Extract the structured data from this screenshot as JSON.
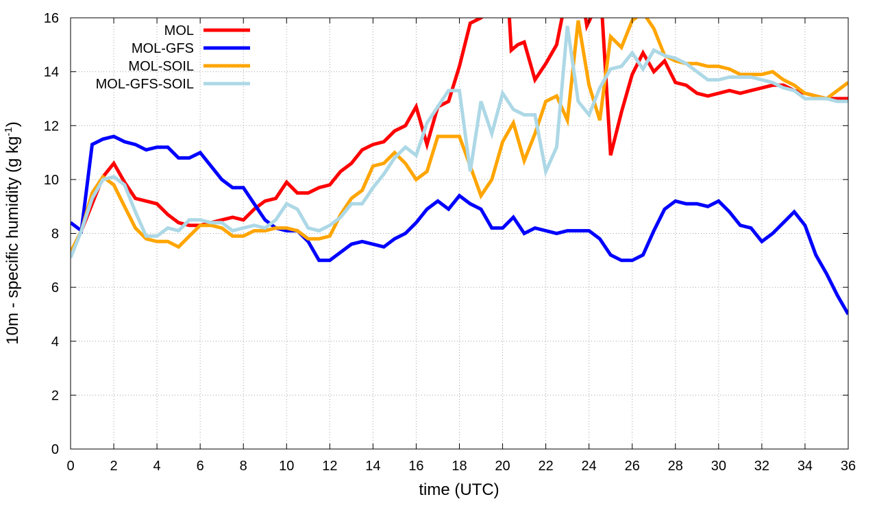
{
  "chart_data": {
    "type": "line",
    "xlabel": "time (UTC)",
    "ylabel_main": "10m - specific humidity (g kg",
    "ylabel_sup": "-1",
    "ylabel_tail": ")",
    "xlim": [
      0,
      36
    ],
    "ylim": [
      0,
      16
    ],
    "xticks": [
      0,
      2,
      4,
      6,
      8,
      10,
      12,
      14,
      16,
      18,
      20,
      22,
      24,
      26,
      28,
      30,
      32,
      34,
      36
    ],
    "yticks": [
      0,
      2,
      4,
      6,
      8,
      10,
      12,
      14,
      16
    ],
    "grid": true,
    "legend_position": "top-left",
    "series": [
      {
        "name": "MOL",
        "color": "#ff0000",
        "points": [
          [
            0,
            7.2
          ],
          [
            0.5,
            8.1
          ],
          [
            1,
            9.1
          ],
          [
            1.5,
            10.1
          ],
          [
            2,
            10.6
          ],
          [
            2.5,
            9.9
          ],
          [
            3,
            9.3
          ],
          [
            3.5,
            9.2
          ],
          [
            4,
            9.1
          ],
          [
            4.5,
            8.7
          ],
          [
            5,
            8.4
          ],
          [
            5.5,
            8.3
          ],
          [
            6,
            8.3
          ],
          [
            6.5,
            8.4
          ],
          [
            7,
            8.5
          ],
          [
            7.5,
            8.6
          ],
          [
            8,
            8.5
          ],
          [
            8.5,
            8.9
          ],
          [
            9,
            9.2
          ],
          [
            9.5,
            9.3
          ],
          [
            10,
            9.9
          ],
          [
            10.5,
            9.5
          ],
          [
            11,
            9.5
          ],
          [
            11.5,
            9.7
          ],
          [
            12,
            9.8
          ],
          [
            12.5,
            10.3
          ],
          [
            13,
            10.6
          ],
          [
            13.5,
            11.1
          ],
          [
            14,
            11.3
          ],
          [
            14.5,
            11.4
          ],
          [
            15,
            11.8
          ],
          [
            15.5,
            12.0
          ],
          [
            16,
            12.7
          ],
          [
            16.5,
            11.3
          ],
          [
            17,
            12.7
          ],
          [
            17.5,
            12.9
          ],
          [
            18,
            14.2
          ],
          [
            18.5,
            15.8
          ],
          [
            19,
            16.0
          ],
          [
            19.3,
            16.2
          ],
          [
            20.3,
            16.2
          ],
          [
            20.4,
            14.8
          ],
          [
            20.7,
            15.0
          ],
          [
            21,
            15.1
          ],
          [
            21.5,
            13.7
          ],
          [
            22,
            14.3
          ],
          [
            22.5,
            15.0
          ],
          [
            22.8,
            16.2
          ],
          [
            23.8,
            16.2
          ],
          [
            23.9,
            15.7
          ],
          [
            24.2,
            16.2
          ],
          [
            24.6,
            16.2
          ],
          [
            25,
            10.9
          ],
          [
            25.5,
            12.5
          ],
          [
            26,
            13.9
          ],
          [
            26.5,
            14.7
          ],
          [
            27,
            14.0
          ],
          [
            27.5,
            14.4
          ],
          [
            28,
            13.6
          ],
          [
            28.5,
            13.5
          ],
          [
            29,
            13.2
          ],
          [
            29.5,
            13.1
          ],
          [
            30,
            13.2
          ],
          [
            30.5,
            13.3
          ],
          [
            31,
            13.2
          ],
          [
            31.5,
            13.3
          ],
          [
            32,
            13.4
          ],
          [
            32.5,
            13.5
          ],
          [
            33,
            13.5
          ],
          [
            33.5,
            13.3
          ],
          [
            34,
            13.2
          ],
          [
            34.5,
            13.1
          ],
          [
            35,
            13.0
          ],
          [
            35.5,
            13.0
          ],
          [
            36,
            13.0
          ]
        ]
      },
      {
        "name": "MOL-GFS",
        "color": "#0000ff",
        "points": [
          [
            0,
            8.4
          ],
          [
            0.5,
            8.1
          ],
          [
            1,
            11.3
          ],
          [
            1.5,
            11.5
          ],
          [
            2,
            11.6
          ],
          [
            2.5,
            11.4
          ],
          [
            3,
            11.3
          ],
          [
            3.5,
            11.1
          ],
          [
            4,
            11.2
          ],
          [
            4.5,
            11.2
          ],
          [
            5,
            10.8
          ],
          [
            5.5,
            10.8
          ],
          [
            6,
            11.0
          ],
          [
            6.5,
            10.5
          ],
          [
            7,
            10.0
          ],
          [
            7.5,
            9.7
          ],
          [
            8,
            9.7
          ],
          [
            8.5,
            9.1
          ],
          [
            9,
            8.5
          ],
          [
            9.5,
            8.2
          ],
          [
            10,
            8.1
          ],
          [
            10.5,
            8.1
          ],
          [
            11,
            7.7
          ],
          [
            11.5,
            7.0
          ],
          [
            12,
            7.0
          ],
          [
            12.5,
            7.3
          ],
          [
            13,
            7.6
          ],
          [
            13.5,
            7.7
          ],
          [
            14,
            7.6
          ],
          [
            14.5,
            7.5
          ],
          [
            15,
            7.8
          ],
          [
            15.5,
            8.0
          ],
          [
            16,
            8.4
          ],
          [
            16.5,
            8.9
          ],
          [
            17,
            9.2
          ],
          [
            17.5,
            8.9
          ],
          [
            18,
            9.4
          ],
          [
            18.5,
            9.1
          ],
          [
            19,
            8.9
          ],
          [
            19.5,
            8.2
          ],
          [
            20,
            8.2
          ],
          [
            20.5,
            8.6
          ],
          [
            21,
            8.0
          ],
          [
            21.5,
            8.2
          ],
          [
            22,
            8.1
          ],
          [
            22.5,
            8.0
          ],
          [
            23,
            8.1
          ],
          [
            23.5,
            8.1
          ],
          [
            24,
            8.1
          ],
          [
            24.5,
            7.8
          ],
          [
            25,
            7.2
          ],
          [
            25.5,
            7.0
          ],
          [
            26,
            7.0
          ],
          [
            26.5,
            7.2
          ],
          [
            27,
            8.1
          ],
          [
            27.5,
            8.9
          ],
          [
            28,
            9.2
          ],
          [
            28.5,
            9.1
          ],
          [
            29,
            9.1
          ],
          [
            29.5,
            9.0
          ],
          [
            30,
            9.2
          ],
          [
            30.5,
            8.8
          ],
          [
            31,
            8.3
          ],
          [
            31.5,
            8.2
          ],
          [
            32,
            7.7
          ],
          [
            32.5,
            8.0
          ],
          [
            33,
            8.4
          ],
          [
            33.5,
            8.8
          ],
          [
            34,
            8.3
          ],
          [
            34.5,
            7.2
          ],
          [
            35,
            6.5
          ],
          [
            35.5,
            5.7
          ],
          [
            36,
            5.0
          ]
        ]
      },
      {
        "name": "MOL-SOIL",
        "color": "#ffa500",
        "points": [
          [
            0,
            7.3
          ],
          [
            0.5,
            8.1
          ],
          [
            1,
            9.5
          ],
          [
            1.5,
            10.1
          ],
          [
            2,
            9.8
          ],
          [
            2.5,
            9.0
          ],
          [
            3,
            8.2
          ],
          [
            3.5,
            7.8
          ],
          [
            4,
            7.7
          ],
          [
            4.5,
            7.7
          ],
          [
            5,
            7.5
          ],
          [
            5.5,
            7.9
          ],
          [
            6,
            8.3
          ],
          [
            6.5,
            8.3
          ],
          [
            7,
            8.2
          ],
          [
            7.5,
            7.9
          ],
          [
            8,
            7.9
          ],
          [
            8.5,
            8.1
          ],
          [
            9,
            8.1
          ],
          [
            9.5,
            8.2
          ],
          [
            10,
            8.2
          ],
          [
            10.5,
            8.1
          ],
          [
            11,
            7.8
          ],
          [
            11.5,
            7.8
          ],
          [
            12,
            7.9
          ],
          [
            12.5,
            8.7
          ],
          [
            13,
            9.3
          ],
          [
            13.5,
            9.6
          ],
          [
            14,
            10.5
          ],
          [
            14.5,
            10.6
          ],
          [
            15,
            11.0
          ],
          [
            15.5,
            10.6
          ],
          [
            16,
            10.0
          ],
          [
            16.5,
            10.3
          ],
          [
            17,
            11.6
          ],
          [
            17.5,
            11.6
          ],
          [
            18,
            11.6
          ],
          [
            18.5,
            10.5
          ],
          [
            19,
            9.4
          ],
          [
            19.5,
            10.0
          ],
          [
            20,
            11.4
          ],
          [
            20.5,
            12.1
          ],
          [
            21,
            10.7
          ],
          [
            21.5,
            11.7
          ],
          [
            22,
            12.9
          ],
          [
            22.5,
            13.1
          ],
          [
            23,
            12.2
          ],
          [
            23.5,
            15.9
          ],
          [
            24,
            13.5
          ],
          [
            24.5,
            12.2
          ],
          [
            25,
            15.3
          ],
          [
            25.5,
            14.9
          ],
          [
            26,
            15.9
          ],
          [
            26.5,
            16.2
          ],
          [
            27,
            15.6
          ],
          [
            27.5,
            14.6
          ],
          [
            28,
            14.4
          ],
          [
            28.5,
            14.3
          ],
          [
            29,
            14.3
          ],
          [
            29.5,
            14.2
          ],
          [
            30,
            14.2
          ],
          [
            30.5,
            14.1
          ],
          [
            31,
            13.9
          ],
          [
            31.5,
            13.9
          ],
          [
            32,
            13.9
          ],
          [
            32.5,
            14.0
          ],
          [
            33,
            13.7
          ],
          [
            33.5,
            13.5
          ],
          [
            34,
            13.2
          ],
          [
            34.5,
            13.1
          ],
          [
            35,
            13.0
          ],
          [
            35.5,
            13.3
          ],
          [
            36,
            13.6
          ]
        ]
      },
      {
        "name": "MOL-GFS-SOIL",
        "color": "#add8e6",
        "points": [
          [
            0,
            7.1
          ],
          [
            0.5,
            8.1
          ],
          [
            1,
            9.3
          ],
          [
            1.5,
            10.0
          ],
          [
            2,
            10.1
          ],
          [
            2.5,
            9.8
          ],
          [
            3,
            8.8
          ],
          [
            3.5,
            7.9
          ],
          [
            4,
            7.9
          ],
          [
            4.5,
            8.2
          ],
          [
            5,
            8.1
          ],
          [
            5.5,
            8.5
          ],
          [
            6,
            8.5
          ],
          [
            6.5,
            8.4
          ],
          [
            7,
            8.4
          ],
          [
            7.5,
            8.1
          ],
          [
            8,
            8.2
          ],
          [
            8.5,
            8.3
          ],
          [
            9,
            8.2
          ],
          [
            9.5,
            8.5
          ],
          [
            10,
            9.1
          ],
          [
            10.5,
            8.9
          ],
          [
            11,
            8.2
          ],
          [
            11.5,
            8.1
          ],
          [
            12,
            8.3
          ],
          [
            12.5,
            8.6
          ],
          [
            13,
            9.1
          ],
          [
            13.5,
            9.1
          ],
          [
            14,
            9.7
          ],
          [
            14.5,
            10.2
          ],
          [
            15,
            10.8
          ],
          [
            15.5,
            11.2
          ],
          [
            16,
            10.9
          ],
          [
            16.5,
            12.1
          ],
          [
            17,
            12.7
          ],
          [
            17.5,
            13.3
          ],
          [
            18,
            13.3
          ],
          [
            18.5,
            10.3
          ],
          [
            19,
            12.9
          ],
          [
            19.5,
            11.7
          ],
          [
            20,
            13.2
          ],
          [
            20.5,
            12.6
          ],
          [
            21,
            12.4
          ],
          [
            21.5,
            12.4
          ],
          [
            22,
            10.3
          ],
          [
            22.5,
            11.2
          ],
          [
            23,
            15.7
          ],
          [
            23.5,
            12.9
          ],
          [
            24,
            12.4
          ],
          [
            24.5,
            13.4
          ],
          [
            25,
            14.1
          ],
          [
            25.5,
            14.2
          ],
          [
            26,
            14.7
          ],
          [
            26.5,
            14.1
          ],
          [
            27,
            14.8
          ],
          [
            27.5,
            14.6
          ],
          [
            28,
            14.5
          ],
          [
            28.5,
            14.3
          ],
          [
            29,
            14.0
          ],
          [
            29.5,
            13.7
          ],
          [
            30,
            13.7
          ],
          [
            30.5,
            13.8
          ],
          [
            31,
            13.8
          ],
          [
            31.5,
            13.8
          ],
          [
            32,
            13.7
          ],
          [
            32.5,
            13.6
          ],
          [
            33,
            13.4
          ],
          [
            33.5,
            13.3
          ],
          [
            34,
            13.0
          ],
          [
            34.5,
            13.0
          ],
          [
            35,
            13.0
          ],
          [
            35.5,
            12.9
          ],
          [
            36,
            12.9
          ]
        ]
      }
    ]
  }
}
